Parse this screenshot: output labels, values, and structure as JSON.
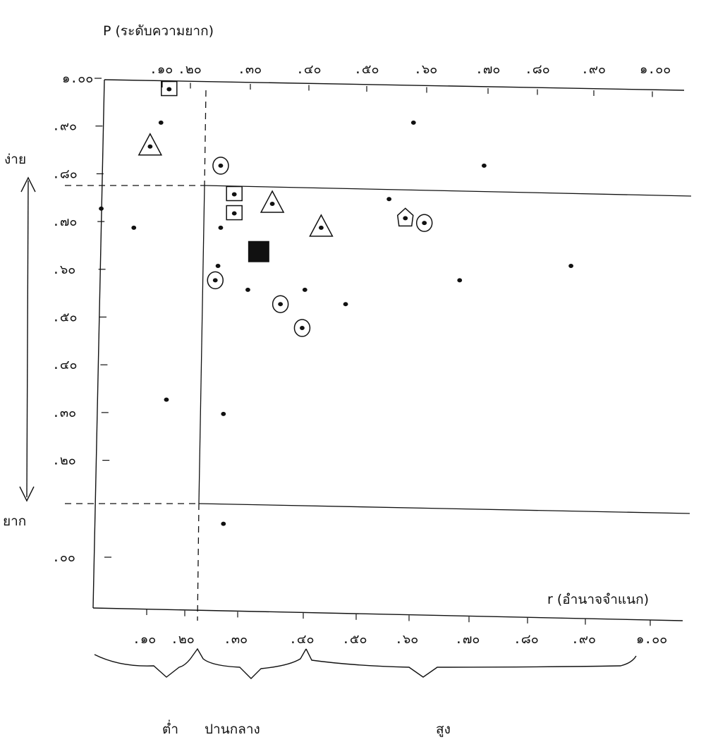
{
  "chart_data": {
    "type": "scatter",
    "title": "",
    "xlabel": "r (อำนาจจำแนก)",
    "ylabel": "P (ระดับความยาก)",
    "xlim": [
      0,
      1.0
    ],
    "ylim": [
      0,
      1.0
    ],
    "x_tick_labels": [
      ".๑๐",
      ".๒๐",
      ".๓๐",
      ".๔๐",
      ".๕๐",
      ".๖๐",
      ".๗๐",
      ".๘๐",
      ".๙๐",
      "๑.๐๐"
    ],
    "y_tick_labels": [
      "๑.๐๐",
      ".๙๐",
      ".๘๐",
      ".๗๐",
      ".๖๐",
      ".๕๐",
      ".๔๐",
      ".๓๐",
      ".๒๐",
      ".๐๐"
    ],
    "y_tick_values": [
      1.0,
      0.9,
      0.8,
      0.7,
      0.6,
      0.5,
      0.4,
      0.3,
      0.2,
      0.0
    ],
    "grid": false,
    "reference_lines": {
      "x": 0.2,
      "y": [
        0.2,
        0.8
      ]
    },
    "y_annotations": {
      "top": "ง่าย",
      "bottom": "ยาก"
    },
    "x_groups": [
      {
        "label": "ต่ำ",
        "range": [
          0.0,
          0.2
        ]
      },
      {
        "label": "ปานกลาง",
        "range": [
          0.2,
          0.4
        ]
      },
      {
        "label": "สูง",
        "range": [
          0.4,
          1.0
        ]
      }
    ],
    "points": [
      {
        "x": 0.015,
        "y": 0.73,
        "marker": "dot"
      },
      {
        "x": 0.075,
        "y": 0.69,
        "marker": "dot"
      },
      {
        "x": 0.125,
        "y": 0.91,
        "marker": "dot"
      },
      {
        "x": 0.135,
        "y": 0.33,
        "marker": "dot"
      },
      {
        "x": 0.235,
        "y": 0.69,
        "marker": "dot"
      },
      {
        "x": 0.23,
        "y": 0.61,
        "marker": "dot"
      },
      {
        "x": 0.285,
        "y": 0.56,
        "marker": "dot"
      },
      {
        "x": 0.24,
        "y": 0.3,
        "marker": "dot"
      },
      {
        "x": 0.24,
        "y": 0.07,
        "marker": "dot"
      },
      {
        "x": 0.39,
        "y": 0.56,
        "marker": "dot"
      },
      {
        "x": 0.465,
        "y": 0.53,
        "marker": "dot"
      },
      {
        "x": 0.545,
        "y": 0.75,
        "marker": "dot"
      },
      {
        "x": 0.59,
        "y": 0.91,
        "marker": "dot"
      },
      {
        "x": 0.675,
        "y": 0.58,
        "marker": "dot"
      },
      {
        "x": 0.72,
        "y": 0.82,
        "marker": "dot"
      },
      {
        "x": 0.88,
        "y": 0.61,
        "marker": "dot"
      },
      {
        "x": 0.14,
        "y": 0.98,
        "marker": "square"
      },
      {
        "x": 0.26,
        "y": 0.76,
        "marker": "square"
      },
      {
        "x": 0.26,
        "y": 0.72,
        "marker": "square"
      },
      {
        "x": 0.105,
        "y": 0.86,
        "marker": "triangle"
      },
      {
        "x": 0.33,
        "y": 0.74,
        "marker": "triangle"
      },
      {
        "x": 0.42,
        "y": 0.69,
        "marker": "triangle"
      },
      {
        "x": 0.575,
        "y": 0.71,
        "marker": "pentagon"
      },
      {
        "x": 0.235,
        "y": 0.82,
        "marker": "circle"
      },
      {
        "x": 0.225,
        "y": 0.58,
        "marker": "circle"
      },
      {
        "x": 0.345,
        "y": 0.53,
        "marker": "circle"
      },
      {
        "x": 0.385,
        "y": 0.48,
        "marker": "circle"
      },
      {
        "x": 0.61,
        "y": 0.7,
        "marker": "circle"
      },
      {
        "x": 0.305,
        "y": 0.64,
        "marker": "filled-square"
      }
    ]
  }
}
